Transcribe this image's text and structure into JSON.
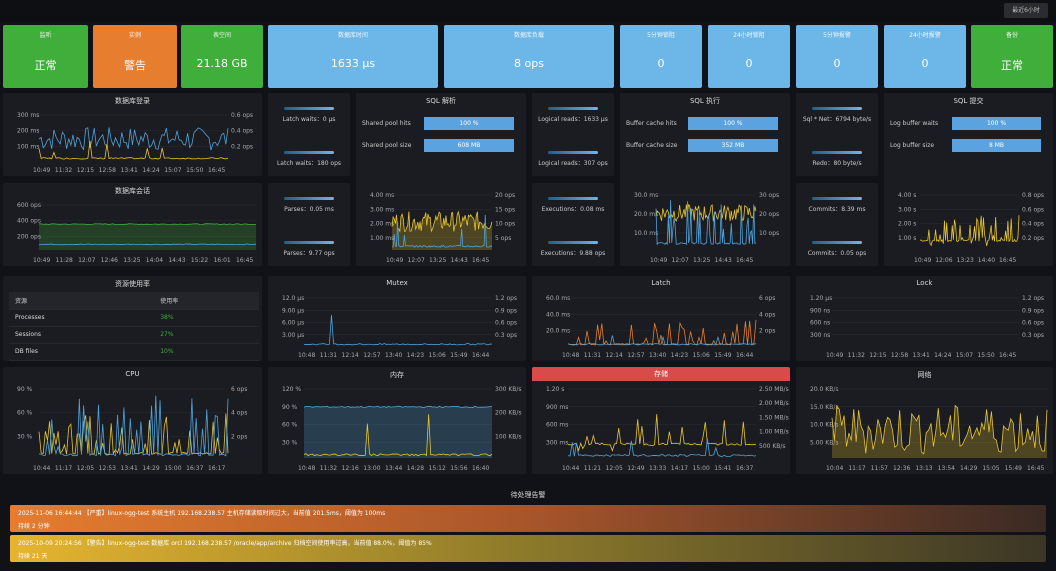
{
  "topbar": {
    "time_range": "最近6小时"
  },
  "stats": [
    {
      "label": "监听",
      "value": "正常",
      "color": "green"
    },
    {
      "label": "实例",
      "value": "警告",
      "color": "orange"
    },
    {
      "label": "表空间",
      "value": "21.18 GB",
      "color": "green"
    },
    {
      "label": "数据库时间",
      "value": "1633 μs",
      "color": "blue"
    },
    {
      "label": "数据库负载",
      "value": "8 ops",
      "color": "blue"
    },
    {
      "label": "5分钟锁阻",
      "value": "0",
      "color": "blue"
    },
    {
      "label": "24小时锁阻",
      "value": "0",
      "color": "blue"
    },
    {
      "label": "5分钟报警",
      "value": "0",
      "color": "blue"
    },
    {
      "label": "24小时报警",
      "value": "0",
      "color": "blue"
    },
    {
      "label": "备份",
      "value": "正常",
      "color": "green"
    }
  ],
  "panels": {
    "db_login": {
      "title": "数据库登录",
      "y_left": [
        "300 ms",
        "200 ms",
        "100 ms"
      ],
      "y_right": [
        "0.6 ops",
        "0.4 ops",
        "0.2 ops"
      ],
      "x": [
        "10:49",
        "11:32",
        "12:15",
        "12:58",
        "13:41",
        "14:24",
        "15:07",
        "15:50",
        "16:45"
      ]
    },
    "db_session": {
      "title": "数据库会话",
      "y_left": [
        "600 ops",
        "400 ops",
        "200 ops"
      ],
      "x": [
        "10:49",
        "11:28",
        "12:07",
        "12:46",
        "13:25",
        "14:04",
        "14:43",
        "15:22",
        "16:01",
        "16:45"
      ]
    },
    "sql_parse": {
      "title": "SQL 解析",
      "kv": [
        {
          "k": "Shared pool hits",
          "v": "100 %"
        },
        {
          "k": "Shared pool size",
          "v": "608 MB"
        }
      ],
      "y_left": [
        "4.00 ms",
        "3.00 ms",
        "2.00 ms",
        "1.00 ms"
      ],
      "y_right": [
        "20 ops",
        "15 ops",
        "10 ops",
        "5 ops"
      ],
      "x": [
        "10:49",
        "12:07",
        "13:25",
        "14:43",
        "16:45"
      ]
    },
    "sql_exec": {
      "title": "SQL 执行",
      "kv": [
        {
          "k": "Buffer cache hits",
          "v": "100 %"
        },
        {
          "k": "Buffer cache size",
          "v": "352 MB"
        }
      ],
      "y_left": [
        "30.0 ms",
        "20.0 ms",
        "10.0 ms"
      ],
      "y_right": [
        "30 ops",
        "20 ops",
        "10 ops"
      ],
      "x": [
        "10:49",
        "12:07",
        "13:25",
        "14:43",
        "16:45"
      ]
    },
    "sql_commit": {
      "title": "SQL 提交",
      "kv": [
        {
          "k": "Log buffer waits",
          "v": "100 %"
        },
        {
          "k": "Log buffer size",
          "v": "8 MB"
        }
      ],
      "y_left": [
        "4.00 s",
        "3.00 s",
        "2.00 s",
        "1.00 s"
      ],
      "y_right": [
        "0.8 ops",
        "0.6 ops",
        "0.4 ops",
        "0.2 ops"
      ],
      "x": [
        "10:49",
        "12:06",
        "13:23",
        "14:40",
        "16:45"
      ]
    },
    "resource": {
      "title": "资源使用率",
      "headers": [
        "资源",
        "使用率"
      ],
      "rows": [
        {
          "name": "Processes",
          "pct": "38%"
        },
        {
          "name": "Sessions",
          "pct": "27%"
        },
        {
          "name": "DB files",
          "pct": "10%"
        }
      ]
    },
    "mutex": {
      "title": "Mutex",
      "y_left": [
        "12.0 μs",
        "9.00 μs",
        "6.00 μs",
        "3.00 μs"
      ],
      "y_right": [
        "1.2 ops",
        "0.9 ops",
        "0.6 ops",
        "0.3 ops"
      ],
      "x": [
        "10:48",
        "11:31",
        "12:14",
        "12:57",
        "13:40",
        "14:23",
        "15:06",
        "15:49",
        "16:44"
      ]
    },
    "latch": {
      "title": "Latch",
      "y_left": [
        "60.0 ms",
        "40.0 ms",
        "20.0 ms"
      ],
      "y_right": [
        "6 ops",
        "4 ops",
        "2 ops"
      ],
      "x": [
        "10:48",
        "11:31",
        "12:14",
        "12:57",
        "13:40",
        "14:23",
        "15:06",
        "15:49",
        "16:44"
      ]
    },
    "lock": {
      "title": "Lock",
      "y_left": [
        "1.20 μs",
        "900 ns",
        "600 ns",
        "300 ns"
      ],
      "y_right": [
        "1.2 ops",
        "0.9 ops",
        "0.6 ops",
        "0.3 ops"
      ],
      "x": [
        "10:49",
        "11:32",
        "12:15",
        "12:58",
        "13:41",
        "14:24",
        "15:07",
        "15:50",
        "16:45"
      ]
    },
    "cpu": {
      "title": "CPU",
      "y_left": [
        "90 %",
        "60 %",
        "30 %"
      ],
      "y_right": [
        "6 ops",
        "4 ops",
        "2 ops"
      ],
      "x": [
        "10:44",
        "11:17",
        "12:05",
        "12:53",
        "13:41",
        "14:29",
        "15:00",
        "16:37",
        "16:17"
      ]
    },
    "memory": {
      "title": "内存",
      "y_left": [
        "120 %",
        "90 %",
        "60 %",
        "30 %"
      ],
      "y_right": [
        "300 KB/s",
        "200 KB/s",
        "100 KB/s"
      ],
      "x": [
        "10:48",
        "11:32",
        "12:16",
        "13:00",
        "13:44",
        "14:28",
        "15:12",
        "15:56",
        "16:40"
      ]
    },
    "storage": {
      "title": "存储",
      "y_left": [
        "1.20 s",
        "900 ms",
        "600 ms",
        "300 ms"
      ],
      "y_right": [
        "2.50 MB/s",
        "2.00 MB/s",
        "1.50 MB/s",
        "1.00 MB/s",
        "500 KB/s"
      ],
      "x": [
        "10:44",
        "11:21",
        "12:05",
        "12:49",
        "13:33",
        "14:17",
        "15:00",
        "15:41",
        "16:37"
      ]
    },
    "network": {
      "title": "网络",
      "y_left": [
        "20.0 KB/s",
        "15.0 KB/s",
        "10.0 KB/s",
        "5.00 KB/s"
      ],
      "x": [
        "10:04",
        "11:17",
        "11:57",
        "12:36",
        "13:13",
        "13:54",
        "14:29",
        "15:05",
        "15:49",
        "16:45"
      ]
    }
  },
  "minis": {
    "col1": [
      {
        "label": "Latch waits：0 μs"
      },
      {
        "label": "Latch waits：180 ops"
      },
      {
        "label": "Parses：0.05 ms"
      },
      {
        "label": "Parses：9.77 ops"
      }
    ],
    "col2": [
      {
        "label": "Logical reads：1633 μs"
      },
      {
        "label": "Logical reads：307 ops"
      },
      {
        "label": "Executions：0.08 ms"
      },
      {
        "label": "Executions：9.88 ops"
      }
    ],
    "col3": [
      {
        "label": "Sql * Net：6794 byte/s"
      },
      {
        "label": "Redo：80 byte/s"
      },
      {
        "label": "Commits：8.39 ms"
      },
      {
        "label": "Commits：0.05 ops"
      }
    ]
  },
  "alerts": {
    "title": "待处理告警",
    "items": [
      {
        "line1": "2025-11-06 16:44:44 【严重】linux-ogg-test 系统主机 192.168.238.57 主机存储读取时间过大，当前值 201.5ms，阈值为 100ms",
        "line2": "持续 2 分钟"
      },
      {
        "line1": "2025-10-09 20:24:56 【警告】linux-ogg-test 数据库 orcl 192.168.238.57 /oracle/app/archive 归档空间使用率过高，当前值 88.0%，阈值为 85%",
        "line2": "持续 21 天"
      }
    ]
  },
  "colors": {
    "series_blue": "#4fa3d9",
    "series_yellow": "#e7c52d",
    "series_orange": "#e67d2f",
    "series_green": "#3fae3b"
  }
}
